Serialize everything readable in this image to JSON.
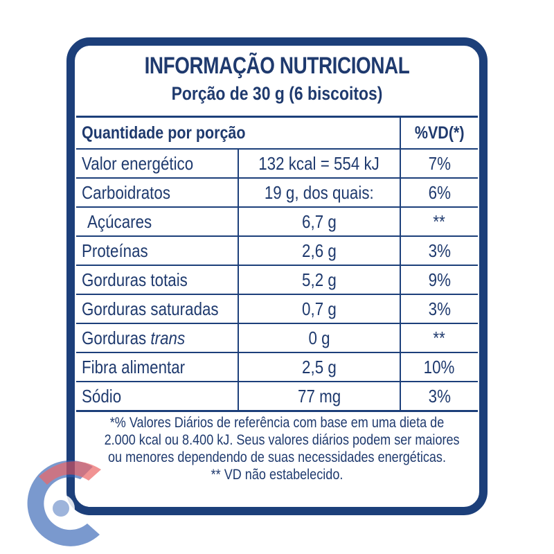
{
  "header": {
    "title": "INFORMAÇÃO NUTRICIONAL",
    "serving": "Porção de 30 g (6 biscoitos)"
  },
  "table": {
    "col_quantity": "Quantidade por porção",
    "col_vd": "%VD(*)",
    "rows": [
      {
        "name": "Valor energético",
        "value": "132 kcal = 554 kJ",
        "vd": "7%"
      },
      {
        "name": "Carboidratos",
        "value": "19 g, dos quais:",
        "vd": "6%"
      },
      {
        "name": "Açúcares",
        "value": "6,7 g",
        "vd": "**"
      },
      {
        "name": "Proteínas",
        "value": "2,6 g",
        "vd": "3%"
      },
      {
        "name": "Gorduras totais",
        "value": "5,2 g",
        "vd": "9%"
      },
      {
        "name": "Gorduras saturadas",
        "value": "0,7 g",
        "vd": "3%"
      },
      {
        "name_prefix": "Gorduras ",
        "name_italic": "trans",
        "value": "0 g",
        "vd": "**"
      },
      {
        "name": "Fibra alimentar",
        "value": "2,5 g",
        "vd": "10%"
      },
      {
        "name": "Sódio",
        "value": "77 mg",
        "vd": "3%"
      }
    ]
  },
  "footnote": {
    "line1": "*% Valores Diários de referência com base em uma dieta de",
    "line2": "2.000 kcal ou 8.400 kJ. Seus valores diários podem ser maiores",
    "line3": "ou menores dependendo de suas necessidades energéticas.",
    "line4": "** VD não estabelecido."
  },
  "colors": {
    "primary": "#1c3f7a",
    "logo_blue": "#2f5fb3",
    "logo_red": "#e84b4b"
  }
}
